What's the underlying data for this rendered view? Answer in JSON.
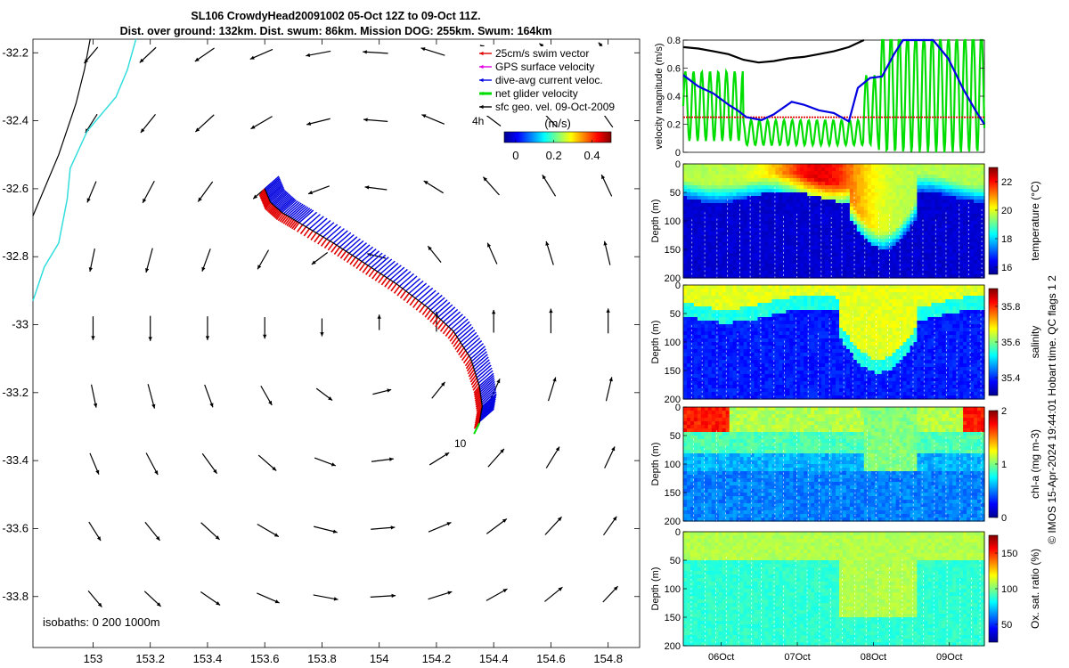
{
  "title_line1": "SL106 CrowdyHead20091002 05-Oct 12Z to 09-Oct 11Z.",
  "title_line2": "Dist. over ground: 132km. Dist. swum: 86km. Mission DOG: 255km. Swum: 164km",
  "credit": "© IMOS 15-Apr-2024 19:44:01 Hobart time. QC flags 1  2",
  "colors": {
    "swim": "#e00000",
    "gps": "#e000e0",
    "current": "#0000e0",
    "net": "#00dd00",
    "sfc": "#000000",
    "coast": "#000000",
    "isobath": "#33dddd"
  },
  "map": {
    "xlim": [
      152.79,
      154.91
    ],
    "ylim": [
      -33.95,
      -32.16
    ],
    "xticks": [
      153,
      153.2,
      153.4,
      153.6,
      153.8,
      154,
      154.2,
      154.4,
      154.6,
      154.8
    ],
    "xtick_labels": [
      "153",
      "153.2",
      "153.4",
      "153.6",
      "153.8",
      "154",
      "154.2",
      "154.4",
      "154.6",
      "154.8"
    ],
    "yticks": [
      -32.2,
      -32.4,
      -32.6,
      -32.8,
      -33,
      -33.2,
      -33.4,
      -33.6,
      -33.8
    ],
    "ytick_labels": [
      "-32.2",
      "-32.4",
      "-32.6",
      "-32.8",
      "-33",
      "-33.2",
      "-33.4",
      "-33.6",
      "-33.8"
    ],
    "legend": [
      {
        "label": "25cm/s swim vector",
        "color": "#e00000"
      },
      {
        "label": "GPS surface velocity",
        "color": "#e000e0"
      },
      {
        "label": "dive-avg current veloc.",
        "color": "#0000e0"
      },
      {
        "label": "net glider velocity",
        "color": "#00dd00"
      },
      {
        "label": "sfc geo. vel. 09-Oct-2009",
        "color": "#000000"
      }
    ],
    "legend_side_label": "4h",
    "colorbar_label": "(m/s)",
    "colorbar_ticks": [
      0,
      0.2,
      0.4
    ],
    "colorbar_tick_labels": [
      "0",
      "0.2",
      "0.4"
    ],
    "colorbar_range": [
      -0.06,
      0.5
    ],
    "annotation_10": "10",
    "isobaths_label": "isobaths: 0   200  1000m",
    "glider_track": [
      [
        153.6,
        -32.6
      ],
      [
        153.62,
        -32.64
      ],
      [
        153.66,
        -32.67
      ],
      [
        153.72,
        -32.7
      ],
      [
        153.84,
        -32.76
      ],
      [
        153.95,
        -32.82
      ],
      [
        154.06,
        -32.88
      ],
      [
        154.17,
        -32.95
      ],
      [
        154.26,
        -33.02
      ],
      [
        154.32,
        -33.1
      ],
      [
        154.35,
        -33.18
      ],
      [
        154.36,
        -33.24
      ],
      [
        154.35,
        -33.29
      ]
    ],
    "coast": [
      [
        152.79,
        -32.68
      ],
      [
        152.88,
        -32.5
      ],
      [
        152.94,
        -32.35
      ],
      [
        152.97,
        -32.25
      ],
      [
        152.99,
        -32.16
      ]
    ],
    "isobath": [
      [
        152.79,
        -32.93
      ],
      [
        152.83,
        -32.83
      ],
      [
        152.88,
        -32.76
      ],
      [
        152.91,
        -32.63
      ],
      [
        152.92,
        -32.54
      ],
      [
        152.98,
        -32.43
      ],
      [
        153.08,
        -32.33
      ],
      [
        153.12,
        -32.25
      ],
      [
        153.15,
        -32.16
      ]
    ],
    "vector_grid": {
      "lons": [
        153,
        153.2,
        153.4,
        153.6,
        153.8,
        154,
        154.2,
        154.4,
        154.6,
        154.8
      ],
      "lats": [
        -32.2,
        -32.4,
        -32.6,
        -32.8,
        -33,
        -33.2,
        -33.4,
        -33.6,
        -33.8
      ]
    }
  },
  "velocity_panel": {
    "ylabel": "velocity magnitude (m/s)",
    "ylim": [
      0,
      0.8
    ],
    "yticks": [
      0,
      0.2,
      0.4,
      0.6,
      0.8
    ],
    "ytick_labels": [
      "0",
      "0.2",
      "0.4",
      "0.6",
      "0.8"
    ],
    "swim_level": 0.25,
    "black_series": [
      [
        0,
        0.75
      ],
      [
        0.05,
        0.74
      ],
      [
        0.1,
        0.72
      ],
      [
        0.15,
        0.7
      ],
      [
        0.2,
        0.66
      ],
      [
        0.25,
        0.64
      ],
      [
        0.3,
        0.65
      ],
      [
        0.35,
        0.67
      ],
      [
        0.4,
        0.68
      ],
      [
        0.45,
        0.7
      ],
      [
        0.5,
        0.72
      ],
      [
        0.55,
        0.75
      ],
      [
        0.6,
        0.8
      ]
    ],
    "blue_series": [
      [
        0,
        0.55
      ],
      [
        0.05,
        0.47
      ],
      [
        0.1,
        0.42
      ],
      [
        0.15,
        0.34
      ],
      [
        0.18,
        0.3
      ],
      [
        0.21,
        0.25
      ],
      [
        0.26,
        0.23
      ],
      [
        0.3,
        0.27
      ],
      [
        0.36,
        0.36
      ],
      [
        0.4,
        0.34
      ],
      [
        0.45,
        0.3
      ],
      [
        0.5,
        0.28
      ],
      [
        0.55,
        0.22
      ],
      [
        0.58,
        0.46
      ],
      [
        0.62,
        0.53
      ],
      [
        0.66,
        0.54
      ],
      [
        0.7,
        0.7
      ],
      [
        0.73,
        0.8
      ],
      [
        0.83,
        0.8
      ],
      [
        0.88,
        0.67
      ],
      [
        0.93,
        0.45
      ],
      [
        0.97,
        0.3
      ],
      [
        1,
        0.2
      ]
    ]
  },
  "time_axis": {
    "range_days": [
      5.5,
      9.46
    ],
    "ticks": [
      6,
      7,
      8,
      9
    ],
    "tick_labels": [
      "06Oct",
      "07Oct",
      "08Oct",
      "09Oct"
    ]
  },
  "depth_panels": [
    {
      "name": "temperature",
      "cbar_label": "temperature (°C)",
      "cbar_ticks": [
        16,
        18,
        20,
        22
      ],
      "cbar_tick_labels": [
        "16",
        "18",
        "20",
        "22"
      ],
      "cbar_range": [
        15.5,
        23
      ]
    },
    {
      "name": "salinity",
      "cbar_label": "salinity",
      "cbar_ticks": [
        35.4,
        35.6,
        35.8
      ],
      "cbar_tick_labels": [
        "35.4",
        "35.6",
        "35.8"
      ],
      "cbar_range": [
        35.3,
        35.9
      ]
    },
    {
      "name": "chla",
      "cbar_label": "chl-a (mg m-3)",
      "cbar_ticks": [
        0,
        1,
        2
      ],
      "cbar_tick_labels": [
        "0",
        "1",
        "2"
      ],
      "cbar_range": [
        0,
        2
      ]
    },
    {
      "name": "oxygen",
      "cbar_label": "Ox. sat. ratio (%)",
      "cbar_ticks": [
        50,
        100,
        150
      ],
      "cbar_tick_labels": [
        "50",
        "100",
        "150"
      ],
      "cbar_range": [
        25,
        175
      ]
    }
  ],
  "depth_axis": {
    "ylabel": "Depth (m)",
    "ylim": [
      0,
      200
    ],
    "yticks": [
      0,
      50,
      100,
      150,
      200
    ],
    "ytick_labels": [
      "0",
      "50",
      "100",
      "150",
      "200"
    ]
  }
}
